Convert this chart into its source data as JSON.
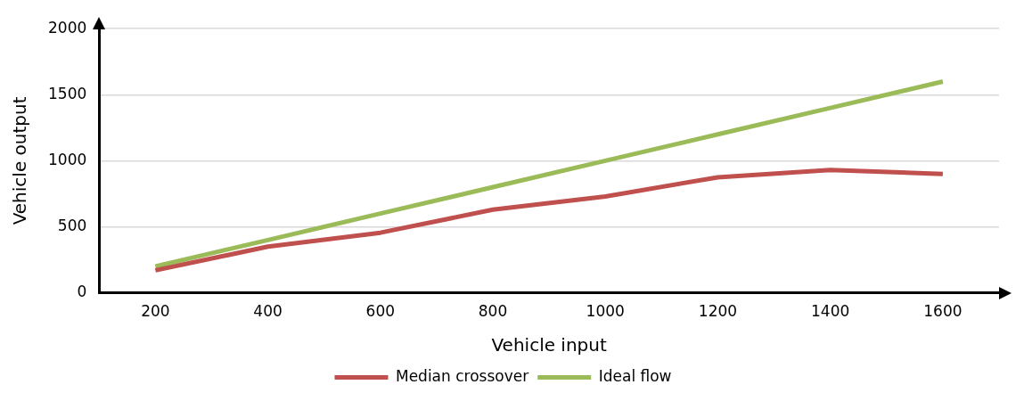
{
  "chart_data": {
    "type": "line",
    "xlabel": "Vehicle input",
    "ylabel": "Vehicle output",
    "categories": [
      "200",
      "400",
      "600",
      "800",
      "1000",
      "1200",
      "1400",
      "1600"
    ],
    "series": [
      {
        "name": "Median crossover",
        "color": "#c0504d",
        "values": [
          170,
          350,
          455,
          630,
          730,
          875,
          930,
          900
        ]
      },
      {
        "name": "Ideal flow",
        "color": "#9bbb59",
        "values": [
          200,
          400,
          600,
          800,
          1000,
          1200,
          1400,
          1600
        ]
      }
    ],
    "ylim": [
      0,
      2000
    ],
    "yticks": [
      0,
      500,
      1000,
      1500,
      2000
    ],
    "grid": "y",
    "legend": "bottom",
    "marker": "none",
    "line_style": "solid"
  }
}
